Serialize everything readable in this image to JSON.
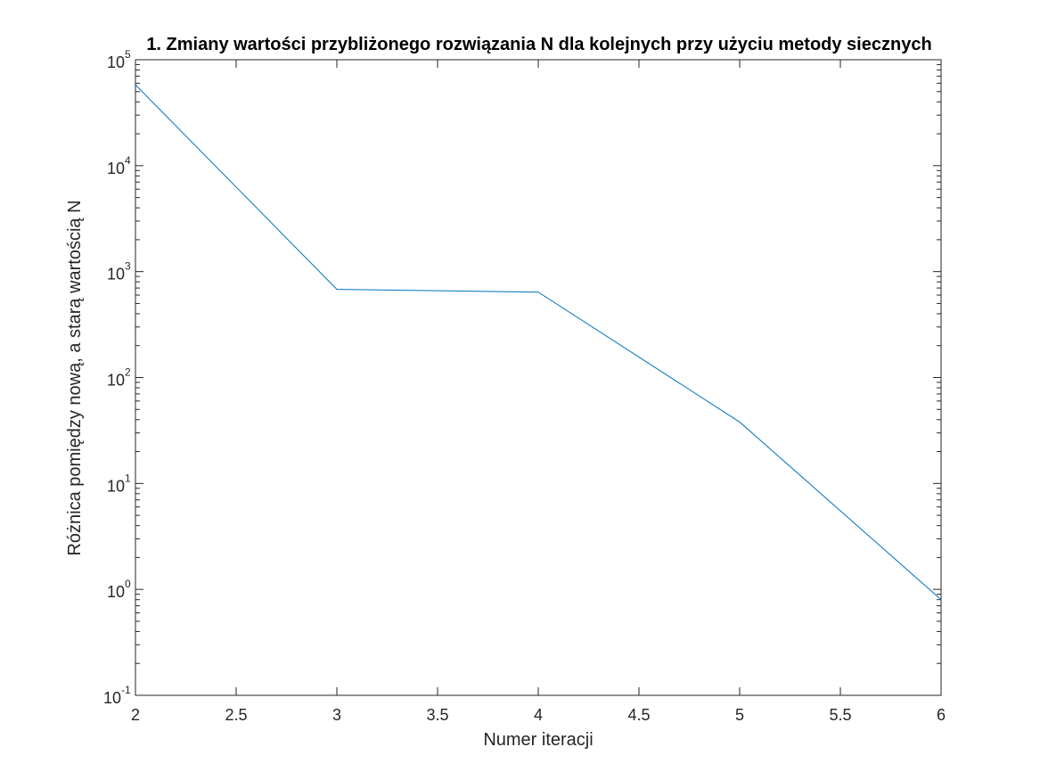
{
  "chart_data": {
    "type": "line",
    "title": "1. Zmiany wartości przybliżonego rozwiązania N dla kolejnych przy użyciu metody siecznych",
    "xlabel": "Numer iteracji",
    "ylabel": "Różnica pomiędzy nową, a starą wartością N",
    "x": [
      2,
      3,
      4,
      5,
      6
    ],
    "series": [
      {
        "values": [
          58000,
          680,
          640,
          38,
          0.8
        ],
        "color": "#0072BD"
      }
    ],
    "xlim": [
      2,
      6
    ],
    "ylim": [
      0.1,
      100000
    ],
    "yscale": "log",
    "xticks": [
      2,
      2.5,
      3,
      3.5,
      4,
      4.5,
      5,
      5.5,
      6
    ],
    "xtick_labels": [
      "2",
      "2.5",
      "3",
      "3.5",
      "4",
      "4.5",
      "5",
      "5.5",
      "6"
    ],
    "yticks": [
      0.1,
      1,
      10,
      100,
      1000,
      10000,
      100000
    ],
    "ytick_bases": [
      "10",
      "10",
      "10",
      "10",
      "10",
      "10",
      "10"
    ],
    "ytick_exponents": [
      "-1",
      "0",
      "1",
      "2",
      "3",
      "4",
      "5"
    ],
    "grid": false,
    "legend": "none"
  }
}
